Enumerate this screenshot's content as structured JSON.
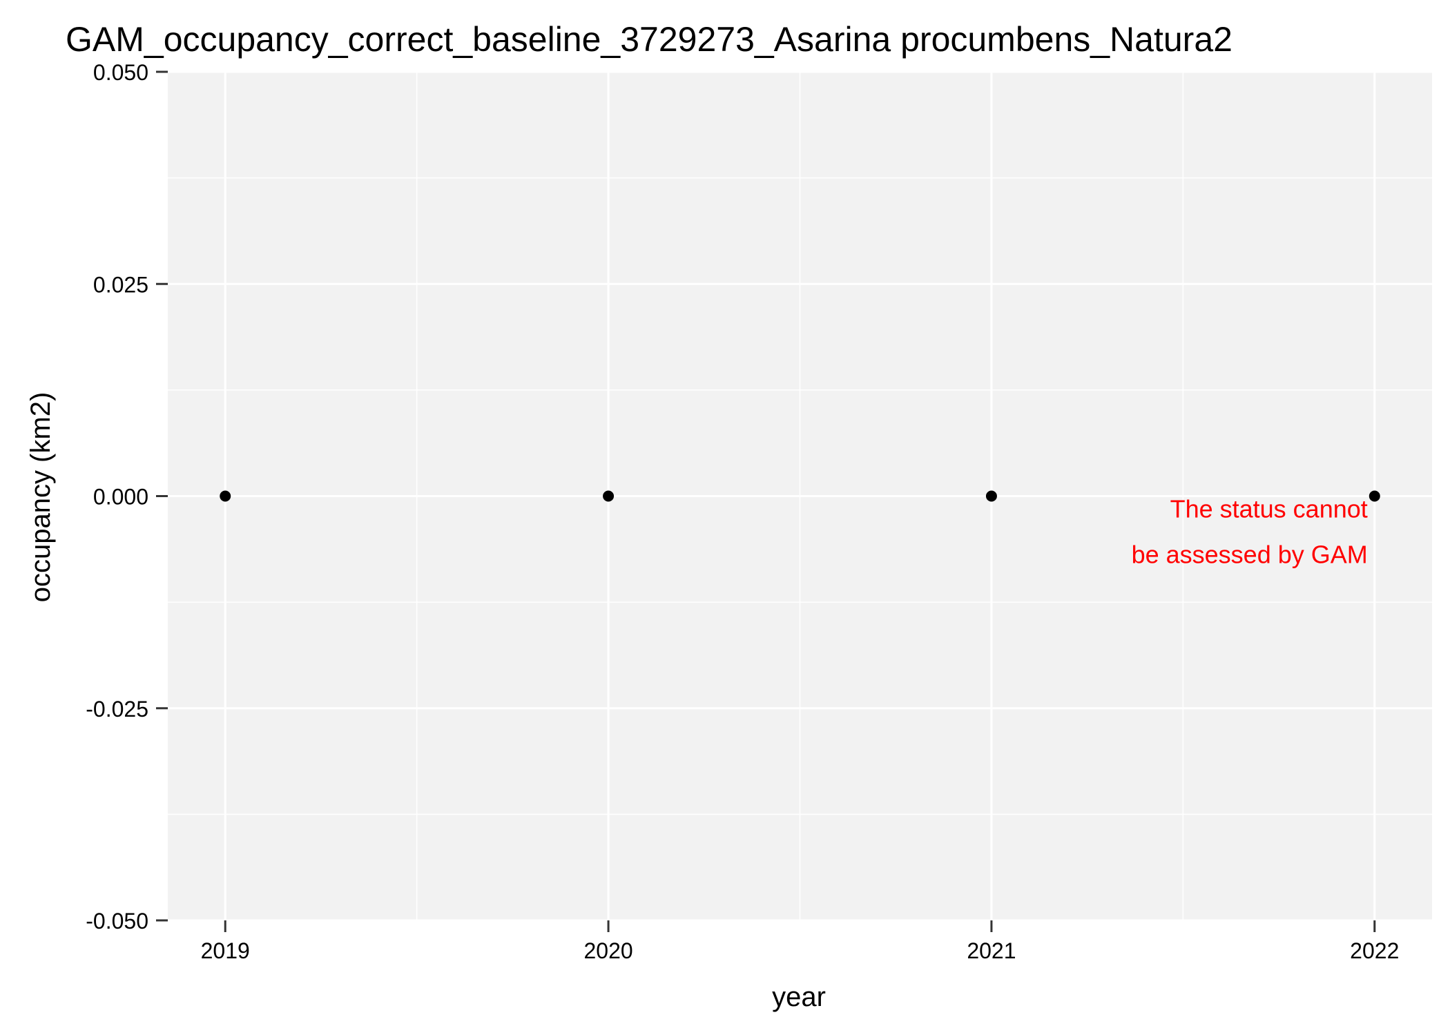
{
  "chart_data": {
    "type": "scatter",
    "title": "GAM_occupancy_correct_baseline_3729273_Asarina procumbens_Natura2",
    "xlabel": "year",
    "ylabel": "occupancy (km2)",
    "x_ticks": [
      "2019",
      "2020",
      "2021",
      "2022"
    ],
    "y_ticks": [
      "0.050",
      "0.025",
      "0.000",
      "-0.025",
      "-0.050"
    ],
    "xlim": [
      2018.85,
      2022.15
    ],
    "ylim": [
      -0.05,
      0.05
    ],
    "grid": true,
    "legend": "none",
    "series": [
      {
        "x": [
          2019,
          2020,
          2021,
          2022
        ],
        "y": [
          0,
          0,
          0,
          0
        ]
      }
    ],
    "annotation": {
      "lines": [
        "The status cannot",
        "be assessed by GAM"
      ],
      "x": 2022,
      "y": 0,
      "color": "#ff0000"
    },
    "colors": {
      "panel": "#f2f2f2",
      "grid": "#ffffff",
      "point": "#000000",
      "axis_tick": "#333333"
    }
  }
}
